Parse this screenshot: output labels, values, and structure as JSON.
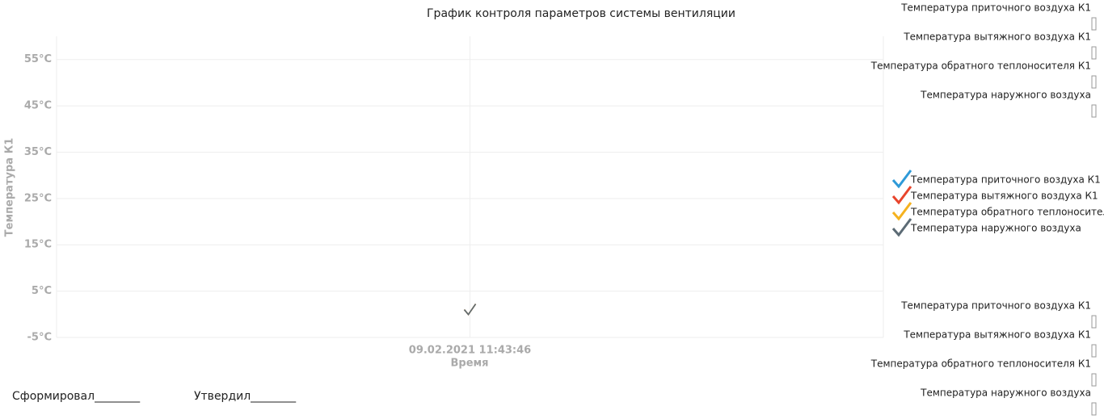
{
  "chart_data": {
    "type": "line",
    "title": "График контроля параметров системы вентиляции",
    "y_label": "Температура К1",
    "x_label": "Время",
    "categories": [
      "09.02.2021 11:43:46"
    ],
    "series": [
      {
        "name": "Температура приточного воздуха К1",
        "color": "#2e9ad8",
        "values": [
          1
        ]
      },
      {
        "name": "Температура вытяжного воздуха К1",
        "color": "#e8452c",
        "values": [
          1
        ]
      },
      {
        "name": "Температура обратного теплоносителя К1",
        "color": "#f5b21f",
        "values": [
          1
        ]
      },
      {
        "name": "Температура наружного воздуха",
        "color": "#5c6b75",
        "values": [
          1
        ]
      }
    ],
    "ylim": [
      -5,
      60
    ],
    "yticks": [
      {
        "value": -5,
        "label": "-5°C"
      },
      {
        "value": 5,
        "label": "5°C"
      },
      {
        "value": 15,
        "label": "15°C"
      },
      {
        "value": 25,
        "label": "25°C"
      },
      {
        "value": 35,
        "label": "35°C"
      },
      {
        "value": 45,
        "label": "45°C"
      },
      {
        "value": 55,
        "label": "55°C"
      }
    ],
    "grid": true
  },
  "side_panel_top": [
    "Температура приточного воздуха К1",
    "Температура вытяжного воздуха К1",
    "Температура обратного теплоносителя К1",
    "Температура наружного воздуха"
  ],
  "side_panel_bottom": [
    "Температура приточного воздуха К1",
    "Температура вытяжного воздуха К1",
    "Температура обратного теплоносителя К1",
    "Температура наружного воздуха"
  ],
  "footer": [
    "Сформировал________",
    "Утвердил________"
  ]
}
